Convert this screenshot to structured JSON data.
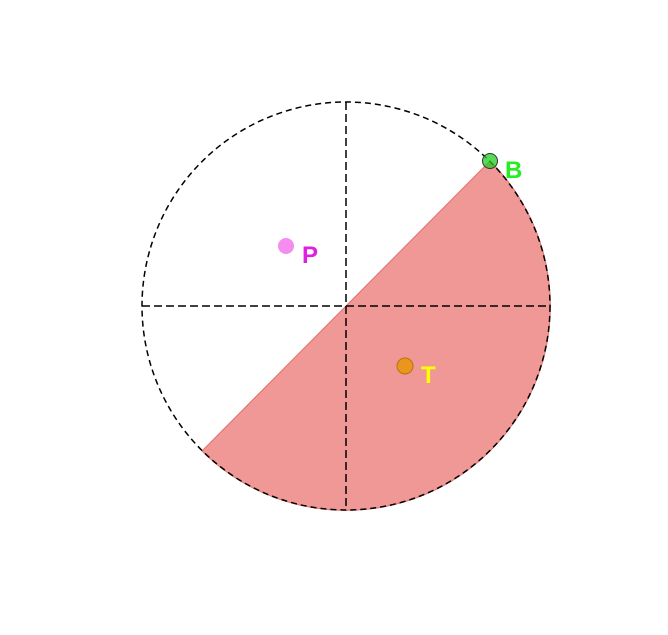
{
  "colors": {
    "background": "#ffffff",
    "circle_outline": "#000000",
    "shaded_sector": "#f09896",
    "shaded_sector_edge": "#e07070"
  },
  "points": [
    {
      "id": "B",
      "label": "B",
      "color": "#22cc22",
      "label_color": "#22ee22"
    },
    {
      "id": "P",
      "label": "P",
      "color": "#f58cf0",
      "label_color": "#e020e0"
    },
    {
      "id": "T",
      "label": "T",
      "color": "#e8961e",
      "label_color": "#ffff00"
    }
  ]
}
